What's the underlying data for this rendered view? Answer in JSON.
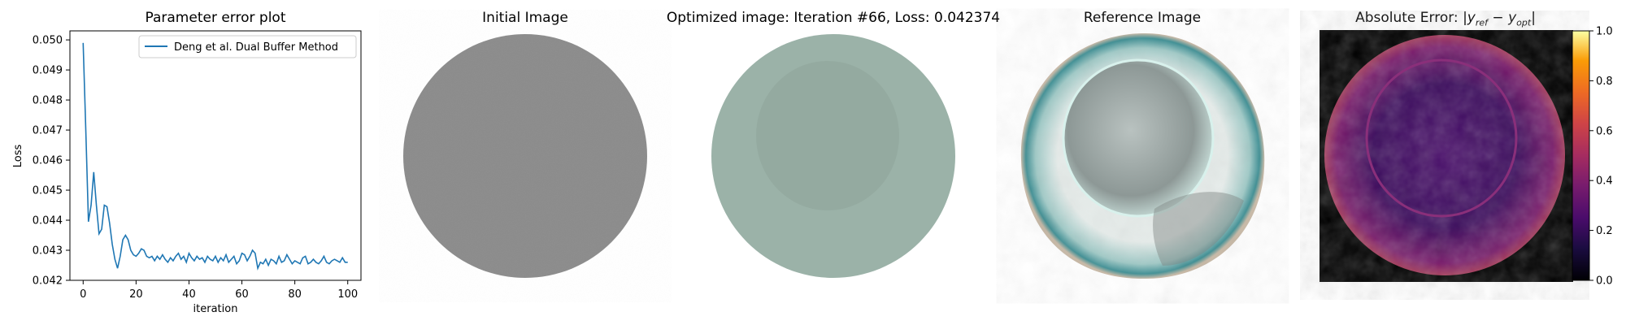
{
  "panels": {
    "loss": {
      "title": "Parameter error plot"
    },
    "initial": {
      "title": "Initial Image"
    },
    "optimized": {
      "title": "Optimized image: Iteration #66, Loss: 0.042374"
    },
    "reference": {
      "title": "Reference Image"
    },
    "error": {
      "title_prefix": "Absolute Error: ",
      "title_math": "|y",
      "sub_ref": "ref",
      "minus": " − y",
      "sub_opt": "opt",
      "title_end": "|"
    }
  },
  "colors": {
    "line": "#1f77b4",
    "initial_disc": "#8c8c8c",
    "optimized_outer": "#9bb2a8",
    "optimized_inner": "#94aaa0",
    "error_bg": "#000000"
  },
  "chart_data": {
    "type": "line",
    "xlabel": "iteration",
    "ylabel": "Loss",
    "xlim": [
      -5,
      105
    ],
    "ylim": [
      0.042,
      0.0503
    ],
    "xticks": [
      0,
      20,
      40,
      60,
      80,
      100
    ],
    "yticks": [
      0.042,
      0.043,
      0.044,
      0.045,
      0.046,
      0.047,
      0.048,
      0.049,
      0.05
    ],
    "ytick_labels": [
      "0.042",
      "0.043",
      "0.044",
      "0.045",
      "0.046",
      "0.047",
      "0.048",
      "0.049",
      "0.050"
    ],
    "legend": "upper-right",
    "series": [
      {
        "name": "Deng et al. Dual Buffer Method",
        "x": [
          0,
          1,
          2,
          3,
          4,
          5,
          6,
          7,
          8,
          9,
          10,
          11,
          12,
          13,
          14,
          15,
          16,
          17,
          18,
          19,
          20,
          21,
          22,
          23,
          24,
          25,
          26,
          27,
          28,
          29,
          30,
          31,
          32,
          33,
          34,
          35,
          36,
          37,
          38,
          39,
          40,
          41,
          42,
          43,
          44,
          45,
          46,
          47,
          48,
          49,
          50,
          51,
          52,
          53,
          54,
          55,
          56,
          57,
          58,
          59,
          60,
          61,
          62,
          63,
          64,
          65,
          66,
          67,
          68,
          69,
          70,
          71,
          72,
          73,
          74,
          75,
          76,
          77,
          78,
          79,
          80,
          81,
          82,
          83,
          84,
          85,
          86,
          87,
          88,
          89,
          90,
          91,
          92,
          93,
          94,
          95,
          96,
          97,
          98,
          99,
          100
        ],
        "y": [
          0.0499,
          0.047,
          0.04395,
          0.0445,
          0.0456,
          0.0445,
          0.04355,
          0.0437,
          0.0445,
          0.04445,
          0.0439,
          0.0432,
          0.0427,
          0.0424,
          0.0428,
          0.04335,
          0.0435,
          0.04335,
          0.043,
          0.04285,
          0.0428,
          0.0429,
          0.04305,
          0.043,
          0.0428,
          0.04275,
          0.0428,
          0.04265,
          0.0428,
          0.0427,
          0.04285,
          0.0427,
          0.0426,
          0.04275,
          0.04265,
          0.0428,
          0.0429,
          0.0427,
          0.0428,
          0.0426,
          0.0429,
          0.04275,
          0.04265,
          0.0428,
          0.0427,
          0.04275,
          0.0426,
          0.0428,
          0.0427,
          0.04265,
          0.0428,
          0.0426,
          0.04275,
          0.04265,
          0.04285,
          0.0426,
          0.0427,
          0.0428,
          0.04255,
          0.04265,
          0.0429,
          0.04285,
          0.04265,
          0.0428,
          0.043,
          0.0429,
          0.0424,
          0.0426,
          0.04255,
          0.0427,
          0.0425,
          0.0427,
          0.04265,
          0.04255,
          0.0428,
          0.0426,
          0.04265,
          0.04285,
          0.0427,
          0.04255,
          0.04265,
          0.0426,
          0.04255,
          0.04275,
          0.0428,
          0.04255,
          0.0426,
          0.0427,
          0.0426,
          0.04255,
          0.04265,
          0.0428,
          0.0426,
          0.04255,
          0.04265,
          0.0427,
          0.04265,
          0.0426,
          0.04275,
          0.0426,
          0.0426
        ]
      }
    ],
    "colorbar": {
      "ticks": [
        0.0,
        0.2,
        0.4,
        0.6,
        0.8,
        1.0
      ],
      "tick_labels": [
        "0.0",
        "0.2",
        "0.4",
        "0.6",
        "0.8",
        "1.0"
      ],
      "range": [
        0,
        1
      ],
      "colormap": "inferno"
    }
  }
}
